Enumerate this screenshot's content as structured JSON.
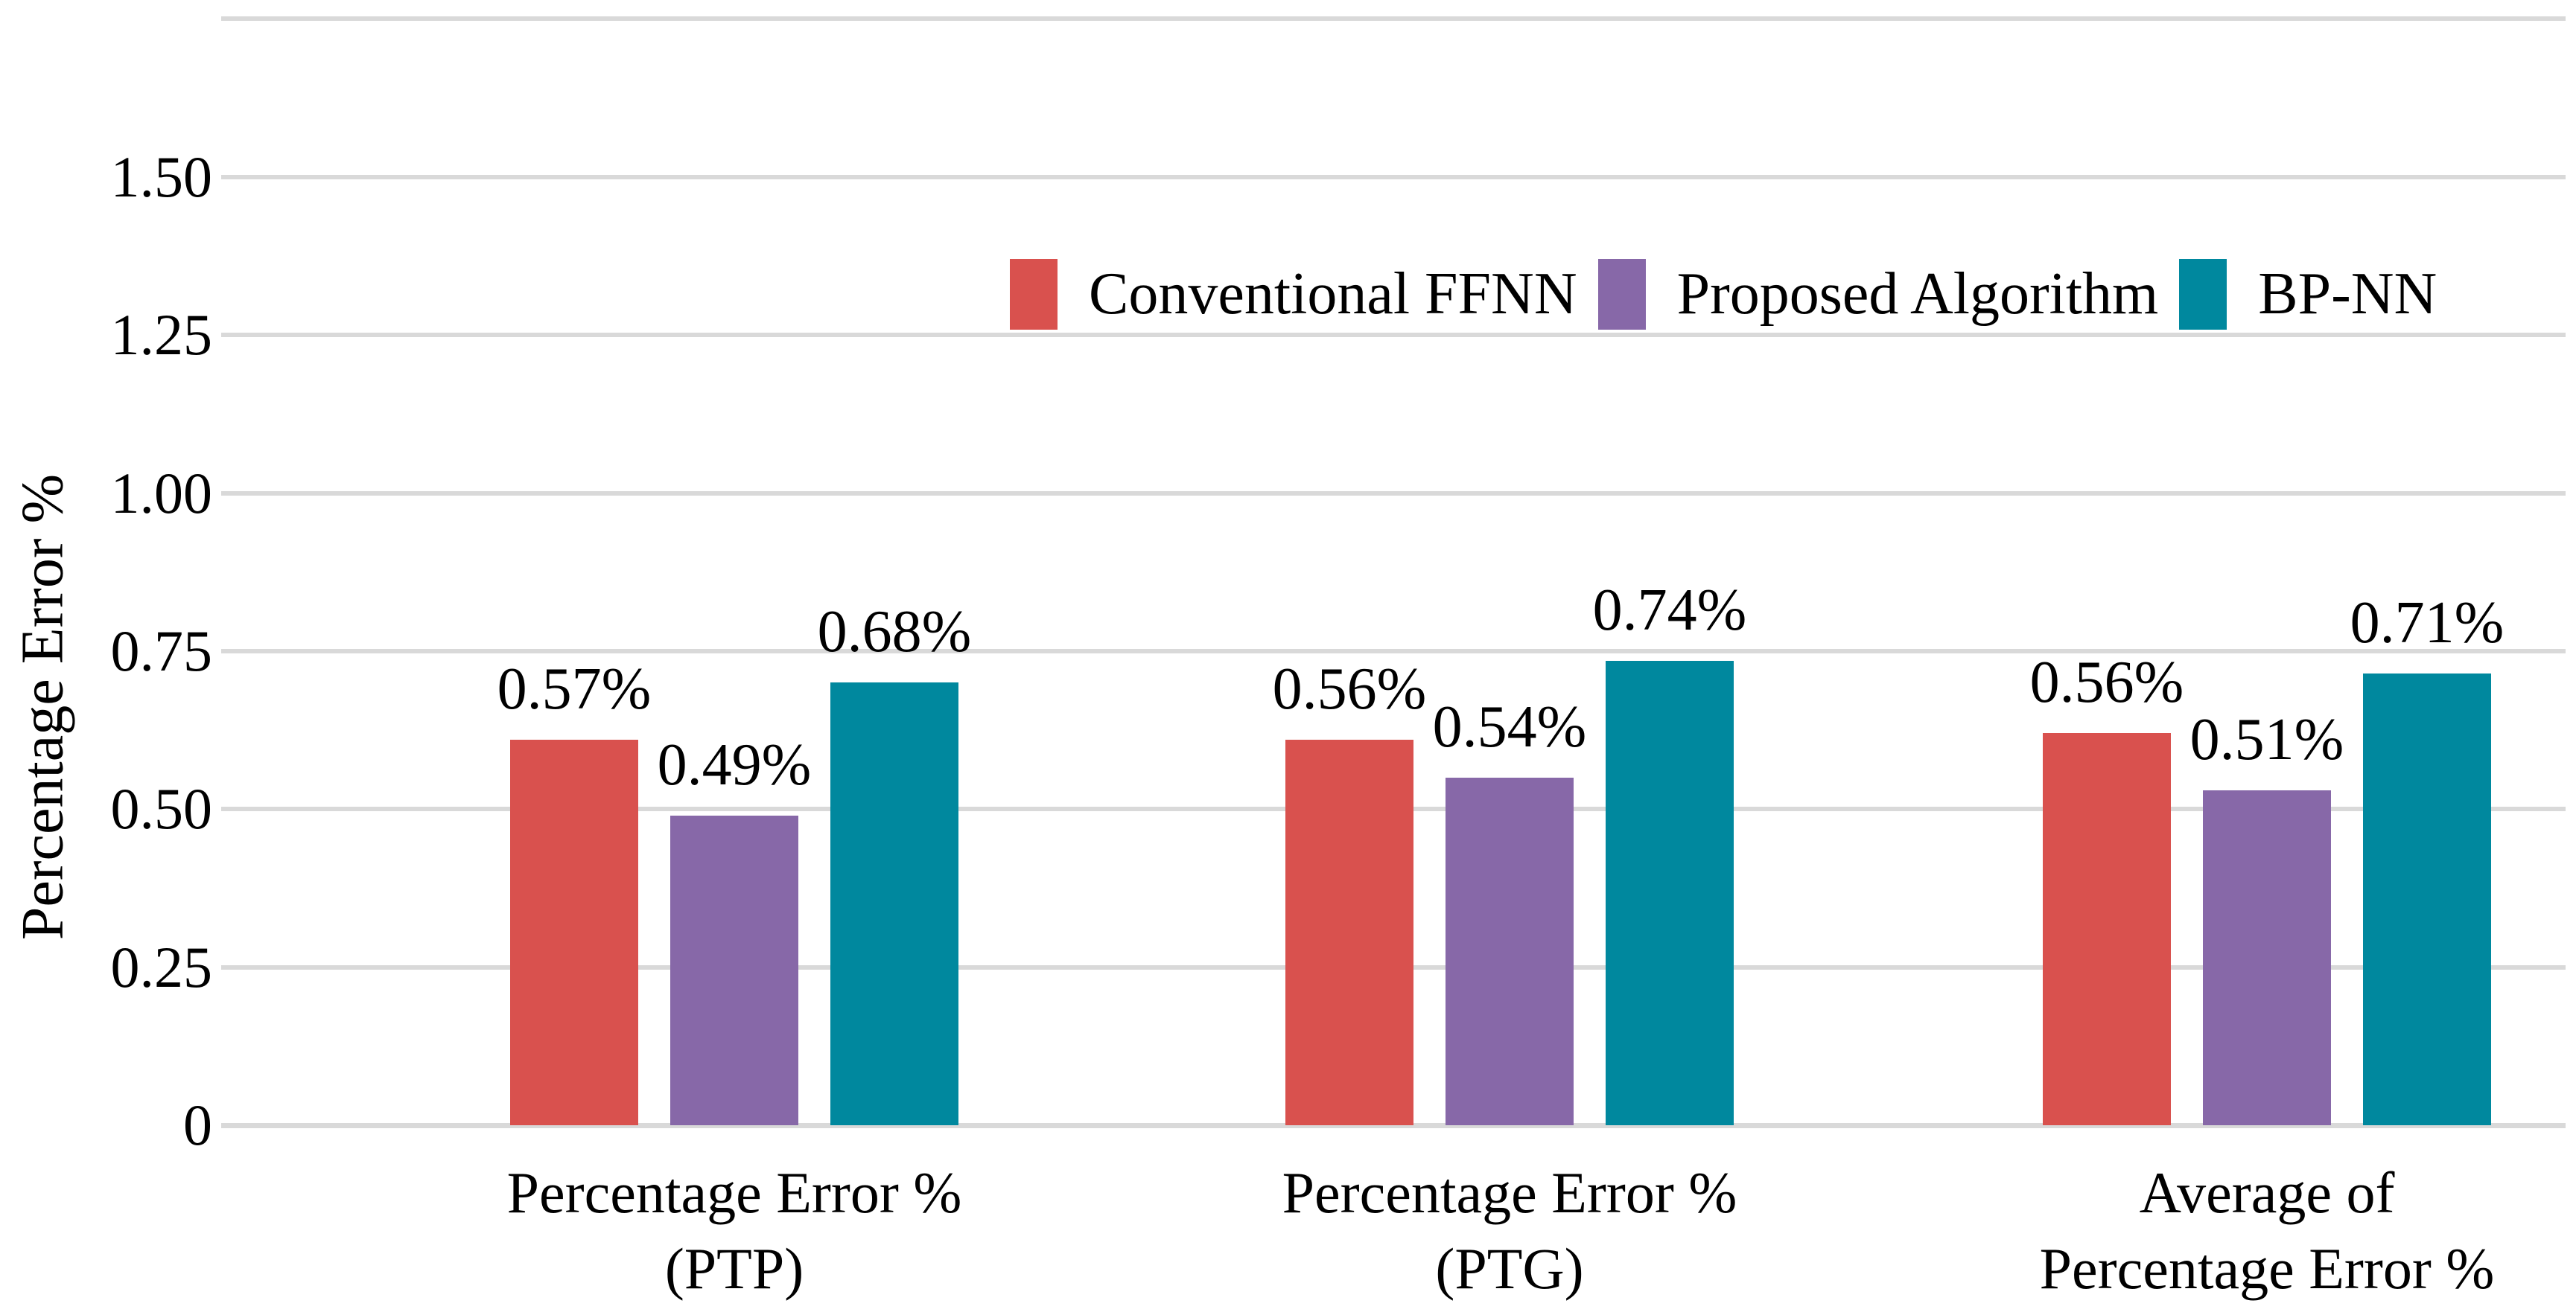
{
  "chart_data": {
    "type": "bar",
    "title": "",
    "xlabel": "",
    "ylabel": "Percentage Error %",
    "ylim": [
      0,
      1.75
    ],
    "grid": "horizontal-gridlines",
    "legend_position": "top-center-inside",
    "y_gridline_values": [
      1.75,
      1.5,
      1.25,
      1.0,
      0.75,
      0.5,
      0.25,
      0
    ],
    "y_ticks": [
      {
        "value": 1.5,
        "label": "1.50"
      },
      {
        "value": 1.25,
        "label": "1.25"
      },
      {
        "value": 1.0,
        "label": "1.00"
      },
      {
        "value": 0.75,
        "label": "0.75"
      },
      {
        "value": 0.5,
        "label": "0.50"
      },
      {
        "value": 0.25,
        "label": "0.25"
      },
      {
        "value": 0,
        "label": "0"
      }
    ],
    "categories": [
      {
        "line1": "Percentage Error %",
        "line2": "(PTP)"
      },
      {
        "line1": "Percentage Error %",
        "line2": "(PTG)"
      },
      {
        "line1": "Average of",
        "line2": "Percentage Error %"
      }
    ],
    "series": [
      {
        "name": "Conventional FFNN",
        "color": "#d9514e",
        "values": [
          0.57,
          0.56,
          0.56
        ],
        "labels": [
          "0.57%",
          "0.56%",
          "0.56%"
        ],
        "drawn_values": [
          0.61,
          0.61,
          0.62
        ]
      },
      {
        "name": "Proposed Algorithm",
        "color": "#8768a8",
        "values": [
          0.49,
          0.54,
          0.51
        ],
        "labels": [
          "0.49%",
          "0.54%",
          "0.51%"
        ],
        "drawn_values": [
          0.49,
          0.55,
          0.53
        ]
      },
      {
        "name": "BP-NN",
        "color": "#00889e",
        "values": [
          0.68,
          0.74,
          0.71
        ],
        "labels": [
          "0.68%",
          "0.74%",
          "0.71%"
        ],
        "drawn_values": [
          0.7,
          0.735,
          0.715
        ]
      }
    ]
  },
  "colors": {
    "background": "#ffffff",
    "gridline": "#d9d9d9",
    "text": "#000000"
  }
}
